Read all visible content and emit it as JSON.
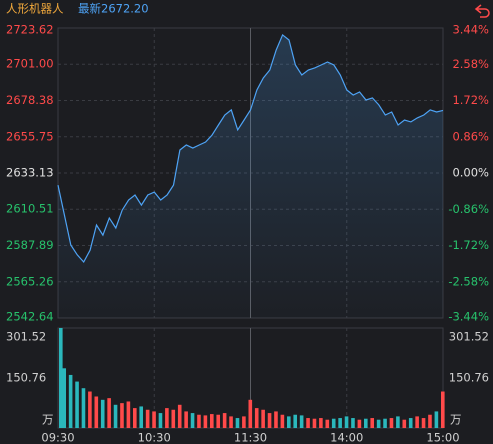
{
  "chart_data": [
    {
      "type": "line",
      "title": "人形机器人",
      "subtitle": "最新2672.20",
      "title_color": "#f0a83c",
      "subtitle_color": "#4ea3f5",
      "color": "#4ea3f5",
      "up_color": "#ff4a4a",
      "down_color": "#27c26c",
      "flat_color": "#e0e0e0",
      "grid": true,
      "xlim": [
        0,
        240
      ],
      "xticks": [
        {
          "value": 0,
          "label": "09:30"
        },
        {
          "value": 60,
          "label": "10:30"
        },
        {
          "value": 120,
          "label": "11:30"
        },
        {
          "value": 180,
          "label": "14:00"
        },
        {
          "value": 240,
          "label": "15:00"
        }
      ],
      "ylim": [
        2542.64,
        2723.62
      ],
      "yticks": [
        2542.64,
        2565.26,
        2587.89,
        2610.51,
        2633.13,
        2655.75,
        2678.38,
        {
          "value": 2701,
          "label": "2701.00"
        },
        2723.62
      ],
      "y2lim": [
        -3.44,
        3.44
      ],
      "y2ticks": [
        {
          "value": -3.44,
          "label": "-3.44%"
        },
        {
          "value": -2.58,
          "label": "-2.58%"
        },
        {
          "value": -1.72,
          "label": "-1.72%"
        },
        {
          "value": -0.86,
          "label": "-0.86%"
        },
        {
          "value": 0,
          "label": "0.00%"
        },
        {
          "value": 0.86,
          "label": "0.86%"
        },
        {
          "value": 1.72,
          "label": "1.72%"
        },
        {
          "value": 2.58,
          "label": "2.58%"
        },
        {
          "value": 3.44,
          "label": "3.44%"
        }
      ],
      "x": [
        0,
        4,
        8,
        12,
        16,
        20,
        24,
        28,
        32,
        36,
        40,
        44,
        48,
        52,
        56,
        60,
        64,
        68,
        72,
        76,
        80,
        84,
        88,
        92,
        96,
        100,
        104,
        108,
        112,
        116,
        120,
        124,
        128,
        132,
        136,
        140,
        144,
        148,
        152,
        156,
        160,
        164,
        168,
        172,
        176,
        180,
        184,
        188,
        192,
        196,
        200,
        204,
        208,
        212,
        216,
        220,
        224,
        228,
        232,
        236,
        240
      ],
      "values": [
        2625.6,
        2606.9,
        2588.2,
        2582,
        2577.6,
        2585,
        2600.7,
        2594.4,
        2605,
        2598.8,
        2610,
        2616.3,
        2619.4,
        2613.1,
        2619.4,
        2621.2,
        2616.3,
        2619.4,
        2625.6,
        2647.5,
        2650.6,
        2648.7,
        2650.6,
        2652.5,
        2656.8,
        2663.1,
        2669.3,
        2672.5,
        2660,
        2666.2,
        2672.5,
        2684.9,
        2692.4,
        2697.4,
        2709.9,
        2719.3,
        2716.1,
        2700.5,
        2694.3,
        2697.4,
        2698.7,
        2700.5,
        2702.4,
        2700.5,
        2694.3,
        2684.9,
        2681.8,
        2683.7,
        2678.7,
        2680,
        2675.6,
        2669.3,
        2671.2,
        2663.1,
        2666.2,
        2665,
        2667.5,
        2669.3,
        2672.5,
        2671.2,
        2672.2
      ]
    },
    {
      "type": "bar",
      "y_unit": "万",
      "up_color": "#ff4a4a",
      "down_color": "#2bb8bd",
      "ylim": [
        0,
        301.52
      ],
      "yticks": [
        150.76,
        301.52
      ],
      "values": [
        301.52,
        180,
        160,
        140,
        120,
        110,
        95,
        85,
        90,
        70,
        75,
        80,
        60,
        65,
        55,
        50,
        45,
        60,
        55,
        70,
        50,
        45,
        40,
        38,
        42,
        40,
        45,
        35,
        30,
        35,
        85,
        60,
        55,
        45,
        50,
        40,
        35,
        40,
        38,
        30,
        28,
        30,
        25,
        28,
        30,
        35,
        30,
        25,
        28,
        30,
        25,
        28,
        30,
        35,
        25,
        30,
        35,
        30,
        40,
        50,
        110
      ]
    }
  ]
}
